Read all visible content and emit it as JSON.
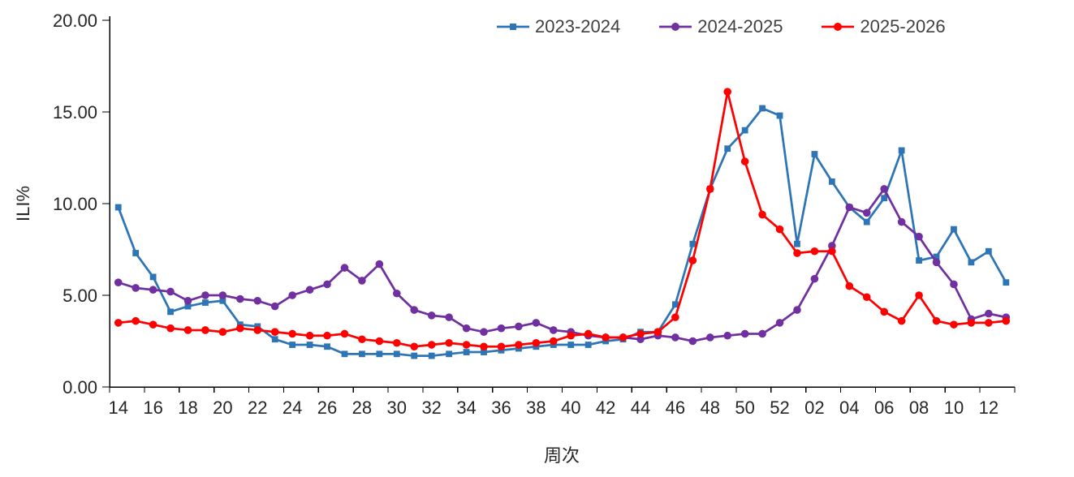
{
  "chart_data": {
    "type": "line",
    "title": "",
    "xlabel": "周次",
    "ylabel": "ILI%",
    "ylim": [
      0,
      20
    ],
    "yticks": [
      0,
      5,
      10,
      15,
      20
    ],
    "ytick_decimals": 2,
    "xtick_every": 2,
    "grid": false,
    "legend_position": "top",
    "categories": [
      "14",
      "15",
      "16",
      "17",
      "18",
      "19",
      "20",
      "21",
      "22",
      "23",
      "24",
      "25",
      "26",
      "27",
      "28",
      "29",
      "30",
      "31",
      "32",
      "33",
      "34",
      "35",
      "36",
      "37",
      "38",
      "39",
      "40",
      "41",
      "42",
      "43",
      "44",
      "45",
      "46",
      "47",
      "48",
      "49",
      "50",
      "51",
      "52",
      "01",
      "02",
      "03",
      "04",
      "05",
      "06",
      "07",
      "08",
      "09",
      "10",
      "11",
      "12",
      "13"
    ],
    "series": [
      {
        "name": "2023-2024",
        "color": "#2E75B6",
        "marker": "square",
        "values": [
          9.8,
          7.3,
          6.0,
          4.1,
          4.4,
          4.6,
          4.7,
          3.4,
          3.3,
          2.6,
          2.3,
          2.3,
          2.2,
          1.8,
          1.8,
          1.8,
          1.8,
          1.7,
          1.7,
          1.8,
          1.9,
          1.9,
          2.0,
          2.1,
          2.2,
          2.3,
          2.3,
          2.3,
          2.5,
          2.6,
          3.0,
          3.0,
          4.5,
          7.8,
          10.8,
          13.0,
          14.0,
          15.2,
          14.8,
          7.8,
          12.7,
          11.2,
          9.8,
          9.0,
          10.3,
          12.9,
          6.9,
          7.1,
          8.6,
          6.8,
          7.4,
          5.7
        ]
      },
      {
        "name": "2024-2025",
        "color": "#7030A0",
        "marker": "circle",
        "values": [
          5.7,
          5.4,
          5.3,
          5.2,
          4.7,
          5.0,
          5.0,
          4.8,
          4.7,
          4.4,
          5.0,
          5.3,
          5.6,
          6.5,
          5.8,
          6.7,
          5.1,
          4.2,
          3.9,
          3.8,
          3.2,
          3.0,
          3.2,
          3.3,
          3.5,
          3.1,
          3.0,
          2.8,
          2.7,
          2.7,
          2.6,
          2.8,
          2.7,
          2.5,
          2.7,
          2.8,
          2.9,
          2.9,
          3.5,
          4.2,
          5.9,
          7.7,
          9.8,
          9.5,
          10.8,
          9.0,
          8.2,
          6.8,
          5.6,
          3.7,
          4.0,
          3.8
        ]
      },
      {
        "name": "2025-2026",
        "color": "#FF0000",
        "marker": "circle",
        "values": [
          3.5,
          3.6,
          3.4,
          3.2,
          3.1,
          3.1,
          3.0,
          3.2,
          3.1,
          3.0,
          2.9,
          2.8,
          2.8,
          2.9,
          2.6,
          2.5,
          2.4,
          2.2,
          2.3,
          2.4,
          2.3,
          2.2,
          2.2,
          2.3,
          2.4,
          2.5,
          2.8,
          2.9,
          2.7,
          2.7,
          2.9,
          3.0,
          3.8,
          6.9,
          10.8,
          16.1,
          12.3,
          9.4,
          8.6,
          7.3,
          7.4,
          7.4,
          5.5,
          4.9,
          4.1,
          3.6,
          5.0,
          3.6,
          3.4,
          3.5,
          3.5,
          3.6
        ]
      }
    ]
  }
}
